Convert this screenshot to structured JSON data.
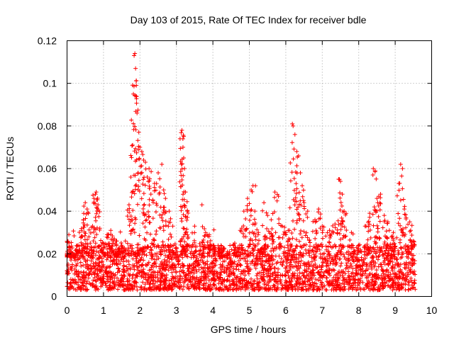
{
  "chart_data": {
    "type": "scatter",
    "title": "Day 103 of 2015, Rate Of TEC Index for receiver bdle",
    "xlabel": "GPS time / hours",
    "ylabel": "ROTI / TECUs",
    "xlim": [
      0,
      10
    ],
    "ylim": [
      0,
      0.12
    ],
    "x_ticks": [
      "0",
      "1",
      "2",
      "3",
      "4",
      "5",
      "6",
      "7",
      "8",
      "9",
      "10"
    ],
    "y_ticks": [
      "0",
      "0.02",
      "0.04",
      "0.06",
      "0.08",
      "0.1",
      "0.12"
    ],
    "grid": true,
    "marker": "+",
    "series": [
      {
        "name": "ROTI",
        "color": "#ff0000",
        "points": [
          [
            0.0,
            0.012
          ],
          [
            0.05,
            0.029
          ],
          [
            0.1,
            0.021
          ],
          [
            0.2,
            0.018
          ],
          [
            0.3,
            0.024
          ],
          [
            0.4,
            0.031
          ],
          [
            0.45,
            0.036
          ],
          [
            0.5,
            0.044
          ],
          [
            0.55,
            0.041
          ],
          [
            0.6,
            0.028
          ],
          [
            0.7,
            0.033
          ],
          [
            0.78,
            0.048
          ],
          [
            0.8,
            0.049
          ],
          [
            0.85,
            0.043
          ],
          [
            0.9,
            0.032
          ],
          [
            1.0,
            0.025
          ],
          [
            1.1,
            0.029
          ],
          [
            1.2,
            0.031
          ],
          [
            1.3,
            0.027
          ],
          [
            1.4,
            0.022
          ],
          [
            1.5,
            0.024
          ],
          [
            1.6,
            0.026
          ],
          [
            1.7,
            0.043
          ],
          [
            1.75,
            0.056
          ],
          [
            1.8,
            0.071
          ],
          [
            1.82,
            0.095
          ],
          [
            1.84,
            0.113
          ],
          [
            1.86,
            0.114
          ],
          [
            1.88,
            0.107
          ],
          [
            1.9,
            0.099
          ],
          [
            1.92,
            0.086
          ],
          [
            1.95,
            0.058
          ],
          [
            2.0,
            0.07
          ],
          [
            2.05,
            0.068
          ],
          [
            2.1,
            0.064
          ],
          [
            2.15,
            0.063
          ],
          [
            2.2,
            0.056
          ],
          [
            2.25,
            0.06
          ],
          [
            2.3,
            0.048
          ],
          [
            2.4,
            0.053
          ],
          [
            2.5,
            0.058
          ],
          [
            2.6,
            0.062
          ],
          [
            2.65,
            0.05
          ],
          [
            2.7,
            0.046
          ],
          [
            2.8,
            0.04
          ],
          [
            2.9,
            0.033
          ],
          [
            3.1,
            0.074
          ],
          [
            3.15,
            0.078
          ],
          [
            3.18,
            0.07
          ],
          [
            3.2,
            0.065
          ],
          [
            3.22,
            0.06
          ],
          [
            3.25,
            0.049
          ],
          [
            3.3,
            0.04
          ],
          [
            3.5,
            0.033
          ],
          [
            3.7,
            0.043
          ],
          [
            3.8,
            0.03
          ],
          [
            3.9,
            0.029
          ],
          [
            4.0,
            0.024
          ],
          [
            4.2,
            0.022
          ],
          [
            4.4,
            0.021
          ],
          [
            4.6,
            0.025
          ],
          [
            4.75,
            0.031
          ],
          [
            4.85,
            0.04
          ],
          [
            4.95,
            0.046
          ],
          [
            5.05,
            0.05
          ],
          [
            5.1,
            0.052
          ],
          [
            5.15,
            0.04
          ],
          [
            5.25,
            0.03
          ],
          [
            5.4,
            0.044
          ],
          [
            5.5,
            0.038
          ],
          [
            5.6,
            0.036
          ],
          [
            5.7,
            0.049
          ],
          [
            5.8,
            0.047
          ],
          [
            5.9,
            0.033
          ],
          [
            6.0,
            0.03
          ],
          [
            6.1,
            0.031
          ],
          [
            6.18,
            0.081
          ],
          [
            6.2,
            0.08
          ],
          [
            6.25,
            0.076
          ],
          [
            6.3,
            0.068
          ],
          [
            6.35,
            0.066
          ],
          [
            6.4,
            0.058
          ],
          [
            6.45,
            0.052
          ],
          [
            6.5,
            0.044
          ],
          [
            6.6,
            0.04
          ],
          [
            6.8,
            0.036
          ],
          [
            6.9,
            0.041
          ],
          [
            7.0,
            0.033
          ],
          [
            7.2,
            0.031
          ],
          [
            7.35,
            0.034
          ],
          [
            7.45,
            0.055
          ],
          [
            7.5,
            0.054
          ],
          [
            7.55,
            0.048
          ],
          [
            7.6,
            0.04
          ],
          [
            7.8,
            0.03
          ],
          [
            8.0,
            0.024
          ],
          [
            8.2,
            0.033
          ],
          [
            8.3,
            0.039
          ],
          [
            8.4,
            0.06
          ],
          [
            8.45,
            0.059
          ],
          [
            8.5,
            0.046
          ],
          [
            8.55,
            0.047
          ],
          [
            8.6,
            0.048
          ],
          [
            8.7,
            0.038
          ],
          [
            8.8,
            0.035
          ],
          [
            8.95,
            0.03
          ],
          [
            9.1,
            0.053
          ],
          [
            9.15,
            0.062
          ],
          [
            9.2,
            0.06
          ],
          [
            9.25,
            0.041
          ],
          [
            9.3,
            0.037
          ],
          [
            9.4,
            0.035
          ],
          [
            9.5,
            0.026
          ]
        ],
        "baseline_band": [
          0.003,
          0.024
        ],
        "x_extent": [
          0.0,
          9.55
        ]
      }
    ]
  }
}
